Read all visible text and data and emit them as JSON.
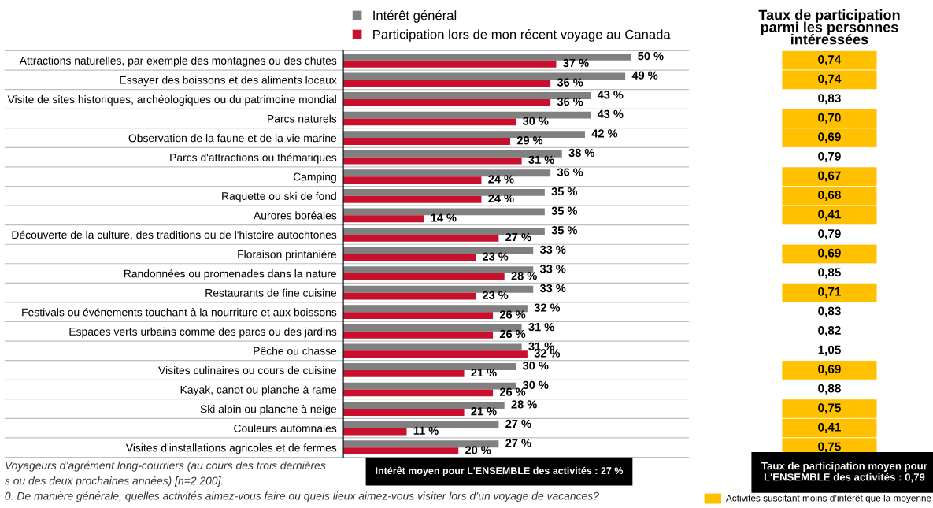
{
  "chart_data": [
    {
      "type": "bar",
      "orientation": "horizontal",
      "legend": "top",
      "grid": false,
      "tick_labels": "y",
      "xlim": [
        0,
        60
      ],
      "categories": [
        "Attractions naturelles, par exemple des montagnes ou des chutes",
        "Essayer des boissons et des aliments locaux",
        "Visite de sites historiques, archéologiques ou du patrimoine mondial",
        "Parcs naturels",
        "Observation de la faune et de la vie marine",
        "Parcs d'attractions ou thématiques",
        "Camping",
        "Raquette ou ski de fond",
        "Aurores boréales",
        "Découverte de la culture, des traditions ou de l'histoire autochtones",
        "Floraison printanière",
        "Randonnées ou promenades dans la nature",
        "Restaurants de fine cuisine",
        "Festivals ou événements touchant à la nourriture et aux boissons",
        "Espaces verts urbains comme des parcs ou des jardins",
        "Pêche ou chasse",
        "Visites culinaires ou cours de cuisine",
        "Kayak, canot ou planche à rame",
        "Ski alpin ou planche à neige",
        "Couleurs automnales",
        "Visites d'installations agricoles et de fermes"
      ],
      "series": [
        {
          "name": "Intérêt général",
          "color": "#808080",
          "values": [
            50,
            49,
            43,
            43,
            42,
            38,
            36,
            35,
            35,
            35,
            33,
            33,
            33,
            32,
            31,
            31,
            30,
            30,
            28,
            27,
            27
          ],
          "value_labels": [
            "50 %",
            "49 %",
            "43 %",
            "43 %",
            "42 %",
            "38 %",
            "36 %",
            "35 %",
            "35 %",
            "35 %",
            "33 %",
            "33 %",
            "33 %",
            "32 %",
            "31 %",
            "31 %",
            "30 %",
            "30 %",
            "28 %",
            "27 %",
            "27 %"
          ]
        },
        {
          "name": "Participation lors de mon récent voyage au Canada",
          "color": "#c8102e",
          "values": [
            37,
            36,
            36,
            30,
            29,
            31,
            24,
            24,
            14,
            27,
            23,
            28,
            23,
            26,
            26,
            32,
            21,
            26,
            21,
            11,
            20
          ],
          "value_labels": [
            "37 %",
            "36 %",
            "36 %",
            "30 %",
            "29 %",
            "31 %",
            "24 %",
            "24 %",
            "14 %",
            "27 %",
            "23 %",
            "28 %",
            "23 %",
            "26 %",
            "26 %",
            "32 %",
            "21 %",
            "26 %",
            "21 %",
            "11 %",
            "20 %"
          ]
        }
      ],
      "annotations": [
        "Voyageurs d’agrément long-courriers (au cours des trois dernières",
        "s ou des deux prochaines années) [n=2 200].",
        "0. De manière générale, quelles activités aimez-vous faire ou quels lieux aimez-vous visiter lors d’un voyage de vacances?",
        "Intérêt moyen pour L'ENSEMBLE des activités : 27 %"
      ]
    },
    {
      "type": "other",
      "title": "Taux de participation\nparmi les personnes\nintéressées",
      "value_labels": [
        "0,74",
        "0,74",
        "0,83",
        "0,70",
        "0,69",
        "0,79",
        "0,67",
        "0,68",
        "0,41",
        "0,79",
        "0,69",
        "0,85",
        "0,71",
        "0,83",
        "0,82",
        "1,05",
        "0,69",
        "0,88",
        "0,75",
        "0,41",
        "0,75"
      ],
      "colors": [
        "#ffc000",
        "#ffc000",
        "#ffffff",
        "#ffc000",
        "#ffc000",
        "#ffffff",
        "#ffc000",
        "#ffc000",
        "#ffc000",
        "#ffffff",
        "#ffc000",
        "#ffffff",
        "#ffc000",
        "#ffffff",
        "#ffffff",
        "#ffffff",
        "#ffc000",
        "#ffffff",
        "#ffc000",
        "#ffc000",
        "#ffc000"
      ],
      "annotations": [
        "Taux de participation moyen pour\nL'ENSEMBLE des activités : 0,79",
        "Activités suscitant moins d’intérêt que la moyenne"
      ]
    }
  ]
}
